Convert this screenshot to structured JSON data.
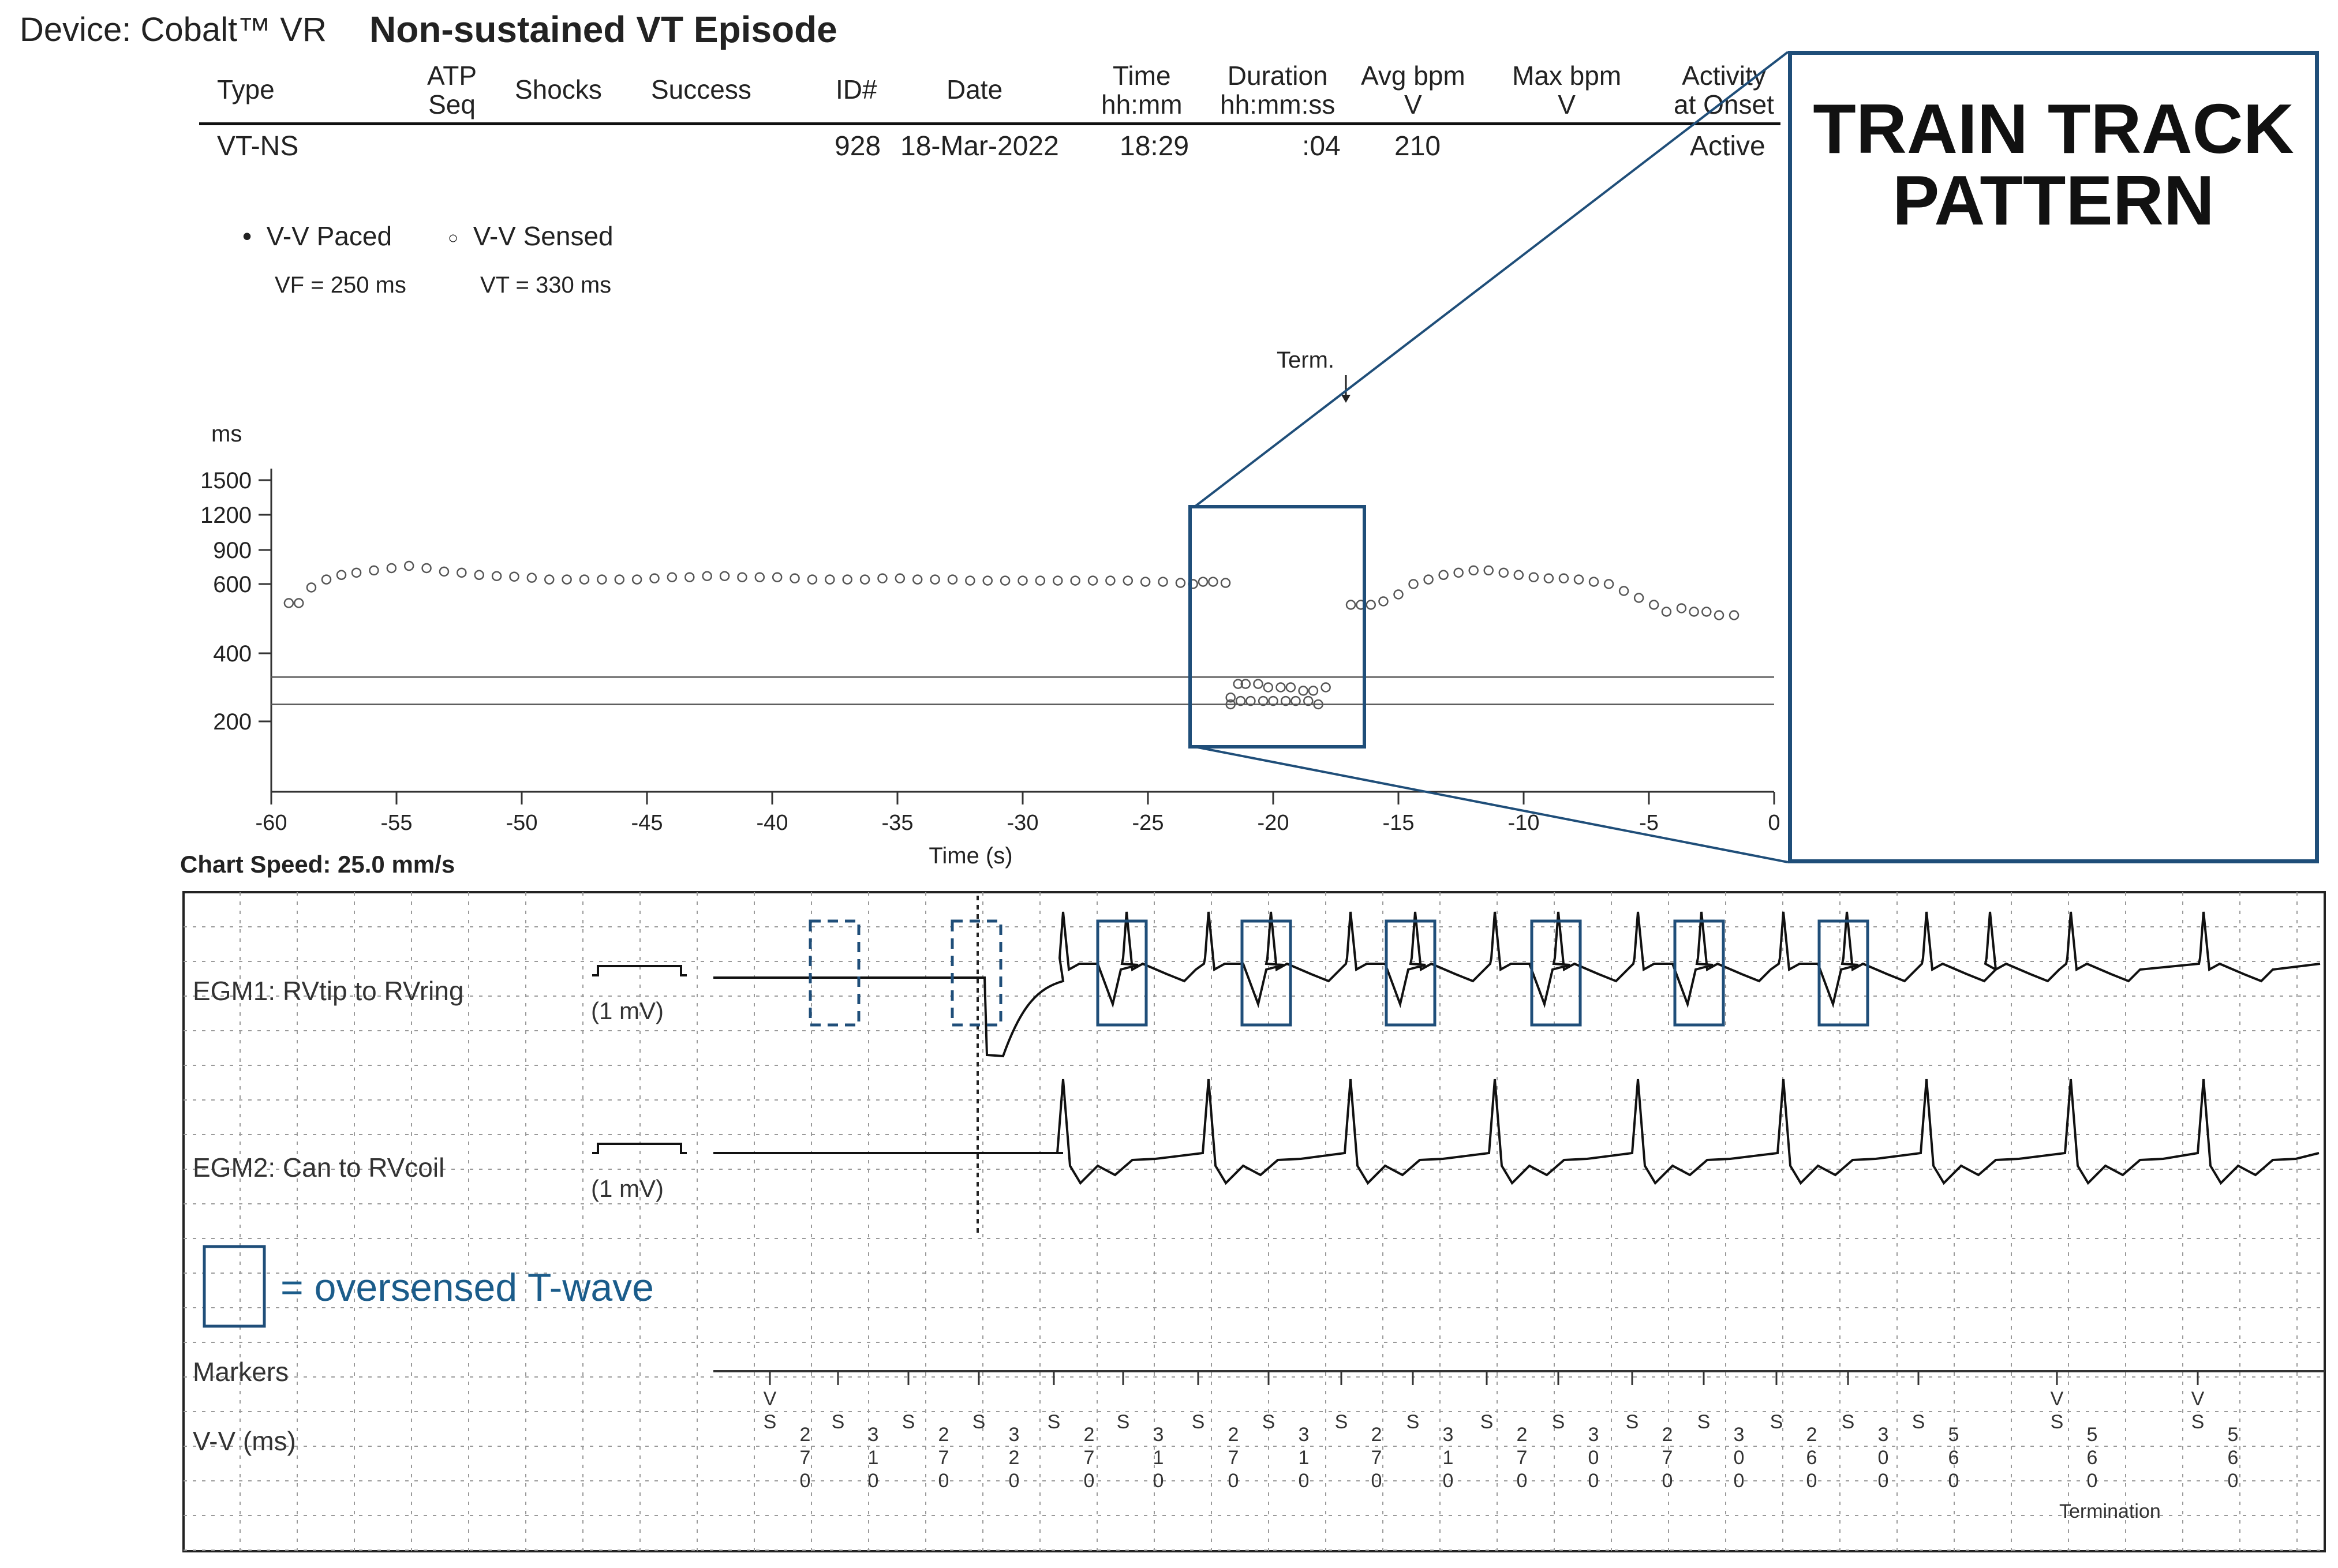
{
  "device": "Device: Cobalt™ VR",
  "episode_title": "Non-sustained VT Episode",
  "table": {
    "headers": [
      "Type",
      "ATP\nSeq",
      "Shocks",
      "Success",
      "ID#",
      "Date",
      "Time\nhh:mm",
      "Duration\nhh:mm:ss",
      "Avg bpm\nV",
      "Max bpm\nV",
      "Activity\nat Onset"
    ],
    "row": {
      "type": "VT-NS",
      "atp_seq": "",
      "shocks": "",
      "success": "",
      "id": "928",
      "date": "18-Mar-2022",
      "time": "18:29",
      "duration": ":04",
      "avg_bpm": "210",
      "max_bpm": "",
      "activity": "Active"
    }
  },
  "legend": {
    "paced": "V-V Paced",
    "sensed": "V-V Sensed",
    "vf": "VF = 250 ms",
    "vt": "VT = 330 ms"
  },
  "term_label": "Term.",
  "chart_data": {
    "type": "scatter",
    "xlabel": "Time (s)",
    "ylabel": "ms",
    "xlim": [
      -60,
      0
    ],
    "ylim": [
      0,
      1500
    ],
    "y_ticks": [
      200,
      400,
      600,
      900,
      1200,
      1500
    ],
    "x_ticks": [
      -60,
      -55,
      -50,
      -45,
      -40,
      -35,
      -30,
      -25,
      -20,
      -15,
      -10,
      -5,
      0
    ],
    "y_scale": "log-like",
    "grid": false,
    "thresholds": [
      {
        "name": "VT = 330 ms",
        "y": 330
      },
      {
        "name": "VF = 250 ms",
        "y": 250
      }
    ],
    "series": [
      {
        "name": "V-V Sensed",
        "points": [
          [
            -59.3,
            545
          ],
          [
            -58.9,
            545
          ],
          [
            -58.4,
            590
          ],
          [
            -57.8,
            640
          ],
          [
            -57.2,
            680
          ],
          [
            -56.6,
            700
          ],
          [
            -55.9,
            720
          ],
          [
            -55.2,
            740
          ],
          [
            -54.5,
            760
          ],
          [
            -53.8,
            740
          ],
          [
            -53.1,
            710
          ],
          [
            -52.4,
            700
          ],
          [
            -51.7,
            680
          ],
          [
            -51.0,
            670
          ],
          [
            -50.3,
            665
          ],
          [
            -49.6,
            655
          ],
          [
            -48.9,
            640
          ],
          [
            -48.2,
            640
          ],
          [
            -47.5,
            640
          ],
          [
            -46.8,
            640
          ],
          [
            -46.1,
            640
          ],
          [
            -45.4,
            640
          ],
          [
            -44.7,
            650
          ],
          [
            -44.0,
            660
          ],
          [
            -43.3,
            660
          ],
          [
            -42.6,
            670
          ],
          [
            -41.9,
            670
          ],
          [
            -41.2,
            660
          ],
          [
            -40.5,
            660
          ],
          [
            -39.8,
            660
          ],
          [
            -39.1,
            650
          ],
          [
            -38.4,
            640
          ],
          [
            -37.7,
            640
          ],
          [
            -37.0,
            640
          ],
          [
            -36.3,
            640
          ],
          [
            -35.6,
            650
          ],
          [
            -34.9,
            650
          ],
          [
            -34.2,
            640
          ],
          [
            -33.5,
            640
          ],
          [
            -32.8,
            640
          ],
          [
            -32.1,
            630
          ],
          [
            -31.4,
            630
          ],
          [
            -30.7,
            630
          ],
          [
            -30.0,
            630
          ],
          [
            -29.3,
            630
          ],
          [
            -28.6,
            630
          ],
          [
            -27.9,
            630
          ],
          [
            -27.2,
            630
          ],
          [
            -26.5,
            630
          ],
          [
            -25.8,
            630
          ],
          [
            -25.1,
            620
          ],
          [
            -24.4,
            620
          ],
          [
            -23.7,
            610
          ],
          [
            -23.2,
            600
          ],
          [
            -22.8,
            620
          ],
          [
            -22.4,
            620
          ],
          [
            -21.9,
            610
          ],
          [
            -21.7,
            270
          ],
          [
            -21.4,
            310
          ],
          [
            -21.1,
            310
          ],
          [
            -20.6,
            310
          ],
          [
            -20.2,
            300
          ],
          [
            -19.7,
            300
          ],
          [
            -19.3,
            300
          ],
          [
            -18.8,
            290
          ],
          [
            -18.4,
            290
          ],
          [
            -17.9,
            300
          ],
          [
            -21.7,
            250
          ],
          [
            -21.3,
            260
          ],
          [
            -20.9,
            260
          ],
          [
            -20.4,
            260
          ],
          [
            -20.0,
            260
          ],
          [
            -19.5,
            260
          ],
          [
            -19.1,
            260
          ],
          [
            -18.6,
            260
          ],
          [
            -18.2,
            250
          ],
          [
            -16.9,
            540
          ],
          [
            -16.5,
            540
          ],
          [
            -16.1,
            540
          ],
          [
            -15.6,
            550
          ],
          [
            -15.0,
            570
          ],
          [
            -14.4,
            600
          ],
          [
            -13.8,
            640
          ],
          [
            -13.2,
            680
          ],
          [
            -12.6,
            700
          ],
          [
            -12.0,
            720
          ],
          [
            -11.4,
            720
          ],
          [
            -10.8,
            700
          ],
          [
            -10.2,
            680
          ],
          [
            -9.6,
            660
          ],
          [
            -9.0,
            650
          ],
          [
            -8.4,
            650
          ],
          [
            -7.8,
            640
          ],
          [
            -7.2,
            620
          ],
          [
            -6.6,
            600
          ],
          [
            -6.0,
            580
          ],
          [
            -5.4,
            560
          ],
          [
            -4.8,
            540
          ],
          [
            -4.3,
            520
          ],
          [
            -3.7,
            530
          ],
          [
            -3.2,
            520
          ],
          [
            -2.7,
            520
          ],
          [
            -2.2,
            510
          ],
          [
            -1.6,
            510
          ]
        ]
      }
    ]
  },
  "chart_speed": "Chart Speed: 25.0 mm/s",
  "egm1_label": "EGM1: RVtip to RVring",
  "egm2_label": "EGM2: Can to RVcoil",
  "cal_label": "(1 mV)",
  "oversense_legend": "= oversensed T-wave",
  "markers_label": "Markers",
  "vv_label": "V-V (ms)",
  "markers": [
    {
      "mark": "V\nS",
      "interval": "2\n7\n0"
    },
    {
      "mark": "S",
      "interval": "3\n1\n0"
    },
    {
      "mark": "S",
      "interval": "2\n7\n0"
    },
    {
      "mark": "S",
      "interval": "3\n2\n0"
    },
    {
      "mark": "S",
      "interval": "2\n7\n0"
    },
    {
      "mark": "S",
      "interval": "3\n1\n0"
    },
    {
      "mark": "S",
      "interval": "2\n7\n0"
    },
    {
      "mark": "S",
      "interval": "3\n1\n0"
    },
    {
      "mark": "S",
      "interval": "2\n7\n0"
    },
    {
      "mark": "S",
      "interval": "3\n1\n0"
    },
    {
      "mark": "S",
      "interval": "2\n7\n0"
    },
    {
      "mark": "S",
      "interval": "3\n0\n0"
    },
    {
      "mark": "S",
      "interval": "2\n7\n0"
    },
    {
      "mark": "S",
      "interval": "3\n0\n0"
    },
    {
      "mark": "S",
      "interval": "2\n6\n0"
    },
    {
      "mark": "S",
      "interval": "3\n0\n0"
    },
    {
      "mark": "S",
      "interval": "5\n6\n0"
    },
    {
      "mark": "V\nS",
      "interval": "5\n6\n0"
    },
    {
      "mark": "V\nS",
      "interval": "5\n6\n0"
    }
  ],
  "termination_label": "Termination",
  "inset": {
    "title": "TRAIN TRACK PATTERN"
  },
  "colors": {
    "accent": "#1f4e79",
    "legend_text": "#1b5c8a",
    "trace": "#111111",
    "grid": "#9a9a9a"
  }
}
